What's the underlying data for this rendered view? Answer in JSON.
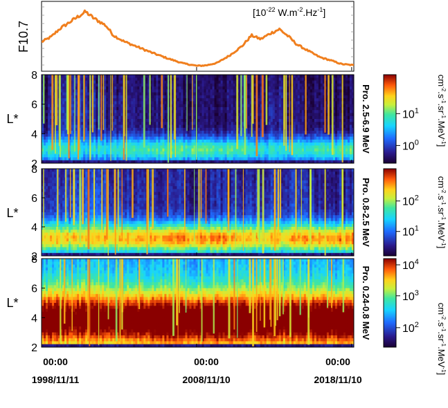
{
  "chart_data": [
    {
      "type": "line",
      "ylabel": "F10.7",
      "unit_label": "[10-22 W.m-2.Hz-1]",
      "unit_parts": {
        "a": "[10",
        "b": "-22",
        "c": " W.m",
        "d": "-2",
        "e": ".Hz",
        "f": "-1",
        "g": "]"
      },
      "series_color": "#f07f1e",
      "x_start_year": 1998.86,
      "x_end_year": 2019.0,
      "x": [
        1998.9,
        1999.5,
        2000.0,
        2000.6,
        2001.2,
        2001.7,
        2002.2,
        2003.0,
        2003.5,
        2004.2,
        2005.0,
        2006.0,
        2007.0,
        2008.0,
        2008.9,
        2009.5,
        2010.2,
        2011.0,
        2011.8,
        2012.4,
        2013.0,
        2013.6,
        2014.2,
        2014.8,
        2015.3,
        2016.0,
        2016.8,
        2017.5,
        2018.2,
        2019.0
      ],
      "y": [
        0.42,
        0.5,
        0.62,
        0.72,
        0.82,
        0.9,
        0.8,
        0.68,
        0.52,
        0.42,
        0.34,
        0.24,
        0.15,
        0.07,
        0.03,
        0.04,
        0.08,
        0.2,
        0.35,
        0.52,
        0.46,
        0.55,
        0.62,
        0.5,
        0.38,
        0.28,
        0.17,
        0.12,
        0.06,
        0.04
      ]
    },
    {
      "type": "heatmap",
      "ylabel": "L*",
      "yticks": [
        "2",
        "4",
        "6",
        "8"
      ],
      "ylim": [
        2,
        8
      ],
      "channel_label": "Pro. 2.5-6.9 MeV",
      "colorbar_ticks": [
        {
          "base": "10",
          "exp": "1",
          "frac": 0.56
        },
        {
          "base": "10",
          "exp": "0",
          "frac": 0.2
        }
      ],
      "colorbar_units": {
        "a": "cm",
        "b": "-2",
        "c": ".s",
        "d": "-1",
        "e": ".sr",
        "f": "-1",
        "g": ".MeV",
        "h": "-1",
        "i": "]"
      },
      "level_base": 0.05,
      "belt": {
        "center_L": 2.9,
        "width_L": 0.9,
        "intensity_quiet": 0.5,
        "intensity_active": 0.35
      },
      "spike_count": 80
    },
    {
      "type": "heatmap",
      "ylabel": "L*",
      "yticks": [
        "2",
        "4",
        "6",
        "8"
      ],
      "ylim": [
        2,
        8
      ],
      "channel_label": "Pro. 0.8-2.5 MeV",
      "colorbar_ticks": [
        {
          "base": "10",
          "exp": "2",
          "frac": 0.63
        },
        {
          "base": "10",
          "exp": "1",
          "frac": 0.28
        }
      ],
      "colorbar_units": {
        "a": "cm",
        "b": "-2",
        "c": ".s",
        "d": "-1",
        "e": ".sr",
        "f": "-1",
        "g": ".MeV",
        "h": "-1",
        "i": "]"
      },
      "level_base": 0.12,
      "belt": {
        "center_L": 3.2,
        "width_L": 1.1,
        "intensity_quiet": 0.72,
        "intensity_active": 0.55
      },
      "spike_count": 70
    },
    {
      "type": "heatmap",
      "ylabel": "L*",
      "yticks": [
        "2",
        "4",
        "6",
        "8"
      ],
      "ylim": [
        2,
        8
      ],
      "channel_label": "Pro. 0.24-0.8 MeV",
      "colorbar_ticks": [
        {
          "base": "10",
          "exp": "4",
          "frac": 0.93
        },
        {
          "base": "10",
          "exp": "3",
          "frac": 0.58
        },
        {
          "base": "10",
          "exp": "2",
          "frac": 0.22
        }
      ],
      "colorbar_units": {
        "a": "cm",
        "b": "-2",
        "c": ".s",
        "d": "-1",
        "e": ".sr",
        "f": "-1",
        "g": ".MeV",
        "h": "-1",
        "i": "]"
      },
      "level_base": 0.35,
      "belt": {
        "center_L": 3.8,
        "width_L": 2.0,
        "intensity_quiet": 0.82,
        "intensity_active": 0.65
      },
      "spike_count": 55
    }
  ],
  "x_axis": {
    "ticks": [
      {
        "time": "00:00",
        "date": "1998/11/11",
        "year": 1998.86
      },
      {
        "time": "00:00",
        "date": "2008/11/10",
        "year": 2008.86
      },
      {
        "time": "00:00",
        "date": "2018/11/10",
        "year": 2018.86
      }
    ]
  }
}
